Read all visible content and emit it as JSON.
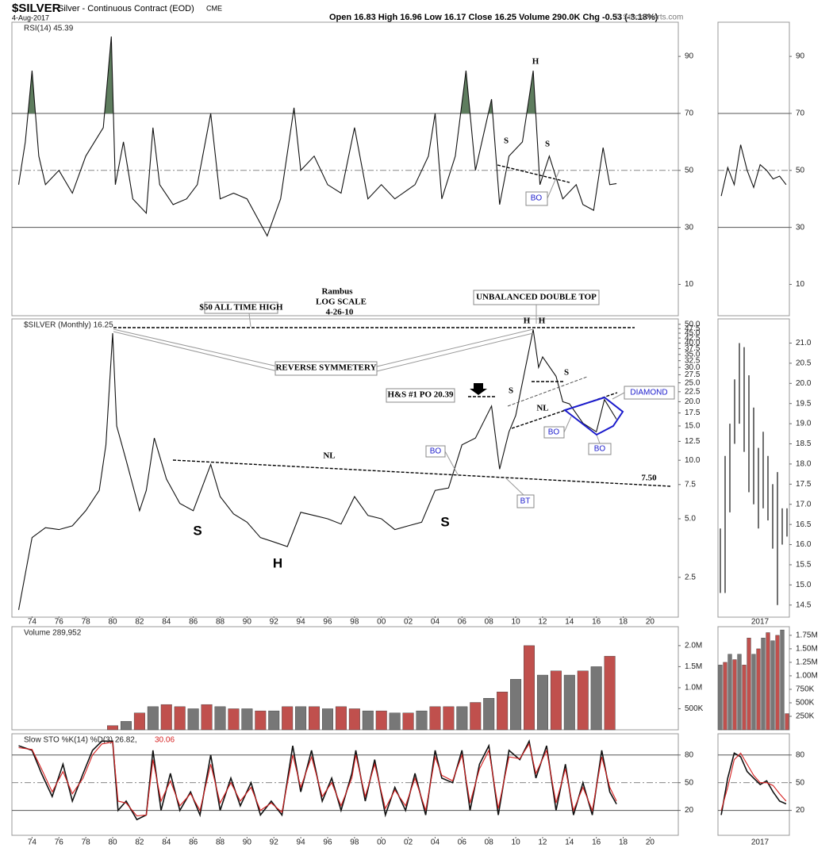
{
  "header": {
    "symbol": "$SILVER",
    "name": "Silver - Continuous Contract (EOD)",
    "exchange": "CME",
    "date": "4-Aug-2017",
    "quote": "Open 16.83 High 16.96 Low 16.17 Close 16.25 Volume 290.0K Chg -0.53 (-3.18%)",
    "copyright": "© StockCharts.com"
  },
  "chart_data": [
    {
      "type": "line",
      "label": "RSI(14) 45.39",
      "color": "#111",
      "fill_color": "#5e7d5e",
      "overbought": 70,
      "x": [
        1973,
        1973.5,
        1974,
        1974.5,
        1975,
        1976,
        1977,
        1978,
        1979.3,
        1979.9,
        1980.2,
        1980.8,
        1981.5,
        1982.5,
        1983,
        1983.5,
        1984.5,
        1985.5,
        1986.3,
        1987.3,
        1988,
        1989,
        1990,
        1991.5,
        1992.5,
        1993.5,
        1994,
        1995,
        1996,
        1997,
        1998,
        1999,
        2000,
        2001,
        2002.5,
        2003.5,
        2004,
        2004.5,
        2005.5,
        2006.3,
        2007,
        2008.2,
        2008.8,
        2009.5,
        2010.5,
        2011.3,
        2011.8,
        2012.5,
        2013.5,
        2014.5,
        2015,
        2015.8,
        2016.5,
        2017,
        2017.5
      ],
      "values": [
        45,
        60,
        85,
        55,
        45,
        50,
        42,
        55,
        65,
        97,
        45,
        60,
        40,
        35,
        65,
        45,
        38,
        40,
        45,
        70,
        40,
        42,
        40,
        27,
        40,
        72,
        50,
        55,
        45,
        42,
        65,
        40,
        45,
        40,
        45,
        55,
        70,
        40,
        55,
        85,
        50,
        75,
        38,
        55,
        60,
        85,
        45,
        55,
        40,
        45,
        38,
        36,
        58,
        45,
        45.39
      ],
      "xlim": [
        1972.5,
        2022.1
      ],
      "ylim": [
        -1,
        102
      ],
      "yticks": [
        10,
        30,
        50,
        70,
        90
      ],
      "grid_styles": [
        "none",
        "solid",
        "dashdot",
        "solid",
        "none"
      ],
      "annotations": [
        "H",
        "S",
        "S",
        "BO"
      ]
    },
    {
      "type": "line",
      "label": "$SILVER (Monthly) 16.25",
      "color": "#111",
      "log": true,
      "x": [
        1973,
        1974,
        1975,
        1976,
        1977,
        1978,
        1979,
        1979.5,
        1980,
        1980.3,
        1981,
        1982,
        1982.5,
        1983.1,
        1984,
        1985,
        1986,
        1987.3,
        1988,
        1989,
        1990,
        1991,
        1992,
        1993,
        1994,
        1995,
        1996,
        1997,
        1998,
        1999,
        2000,
        2001,
        2002,
        2003,
        2004,
        2005,
        2006,
        2007,
        2008.2,
        2008.8,
        2009.5,
        2010,
        2011.3,
        2011.7,
        2012,
        2013,
        2013.5,
        2014,
        2015,
        2016,
        2016.6,
        2017.5
      ],
      "values": [
        1.7,
        4.0,
        4.5,
        4.4,
        4.6,
        5.5,
        7,
        12,
        45,
        15,
        10,
        5.5,
        7,
        13,
        8,
        6,
        5.5,
        9.5,
        6.5,
        5.3,
        4.8,
        4.0,
        3.8,
        3.6,
        5.4,
        5.2,
        5.0,
        4.7,
        6.5,
        5.2,
        5.0,
        4.4,
        4.6,
        4.8,
        7.0,
        7.2,
        12,
        13,
        19,
        9,
        14,
        17,
        47,
        30,
        34,
        27,
        20,
        19.5,
        15.5,
        14,
        20.5,
        16.25
      ],
      "xlim": [
        1972.5,
        2022.1
      ],
      "ylim": [
        1.56,
        53.3
      ],
      "xticks": [
        {
          "value": 1974,
          "label": "74"
        },
        {
          "value": 1976,
          "label": "76"
        },
        {
          "value": 1978,
          "label": "78"
        },
        {
          "value": 1980,
          "label": "80"
        },
        {
          "value": 1982,
          "label": "82"
        },
        {
          "value": 1984,
          "label": "84"
        },
        {
          "value": 1986,
          "label": "86"
        },
        {
          "value": 1988,
          "label": "88"
        },
        {
          "value": 1990,
          "label": "90"
        },
        {
          "value": 1992,
          "label": "92"
        },
        {
          "value": 1994,
          "label": "94"
        },
        {
          "value": 1996,
          "label": "96"
        },
        {
          "value": 1998,
          "label": "98"
        },
        {
          "value": 2000,
          "label": "00"
        },
        {
          "value": 2002,
          "label": "02"
        },
        {
          "value": 2004,
          "label": "04"
        },
        {
          "value": 2006,
          "label": "06"
        },
        {
          "value": 2008,
          "label": "08"
        },
        {
          "value": 2010,
          "label": "10"
        },
        {
          "value": 2012,
          "label": "12"
        },
        {
          "value": 2014,
          "label": "14"
        },
        {
          "value": 2016,
          "label": "16"
        },
        {
          "value": 2018,
          "label": "18"
        },
        {
          "value": 2020,
          "label": "20"
        }
      ],
      "yticks": [
        2.5,
        {
          "value": 5,
          "label": "5.0"
        },
        7.5,
        {
          "value": 10,
          "label": "10.0"
        },
        12.5,
        {
          "value": 15,
          "label": "15.0"
        },
        17.5,
        {
          "value": 20,
          "label": "20.0"
        },
        22.5,
        {
          "value": 25,
          "label": "25.0"
        },
        27.5,
        {
          "value": 30,
          "label": "30.0"
        },
        32.5,
        {
          "value": 35,
          "label": "35.0"
        },
        37.5,
        {
          "value": 40,
          "label": "40.0"
        },
        42.5,
        {
          "value": 45,
          "label": "45.0"
        },
        47.5,
        {
          "value": 50,
          "label": "50.0"
        }
      ],
      "annotations": [
        "Rambus",
        "LOG SCALE",
        "4-26-10",
        "$50 ALL TIME HIGH",
        "UNBALANCED DOUBLE TOP",
        "H",
        "H",
        "REVERSE SYMMETERY",
        "H&S #1 PO 20.39",
        "S",
        "S",
        "NL",
        "DIAMOND",
        "BO",
        "BO",
        "NL",
        "7.50",
        "S",
        "H",
        "S",
        "BO",
        "BT"
      ]
    },
    {
      "type": "bar",
      "label": "Volume 289,952",
      "x": [
        1980,
        1981,
        1982,
        1983,
        1984,
        1985,
        1986,
        1987,
        1988,
        1989,
        1990,
        1991,
        1992,
        1993,
        1994,
        1995,
        1996,
        1997,
        1998,
        1999,
        2000,
        2001,
        2002,
        2003,
        2004,
        2005,
        2006,
        2007,
        2008,
        2009,
        2010,
        2011,
        2012,
        2013,
        2014,
        2015,
        2016,
        2017
      ],
      "values": [
        100000,
        200000,
        400000,
        550000,
        600000,
        550000,
        500000,
        600000,
        550000,
        500000,
        500000,
        450000,
        450000,
        550000,
        550000,
        550000,
        500000,
        550000,
        500000,
        450000,
        450000,
        400000,
        400000,
        450000,
        550000,
        550000,
        550000,
        650000,
        750000,
        900000,
        1200000,
        2000000,
        1300000,
        1400000,
        1300000,
        1400000,
        1500000,
        1750000
      ],
      "colors": [
        "#c0504d",
        "#777",
        "#c0504d",
        "#777",
        "#c0504d",
        "#c0504d",
        "#777",
        "#c0504d",
        "#777",
        "#c0504d",
        "#777",
        "#c0504d",
        "#777",
        "#c0504d",
        "#777",
        "#c0504d",
        "#777",
        "#c0504d",
        "#c0504d",
        "#777",
        "#c0504d",
        "#777",
        "#c0504d",
        "#777",
        "#c0504d",
        "#c0504d",
        "#777",
        "#c0504d",
        "#777",
        "#c0504d",
        "#777",
        "#c0504d",
        "#777",
        "#c0504d",
        "#777",
        "#c0504d",
        "#777",
        "#c0504d"
      ],
      "xlim": [
        1972.5,
        2022.1
      ],
      "ylim": [
        0,
        2450000
      ],
      "yticks": [
        {
          "value": 500000,
          "label": "500K"
        },
        {
          "value": 1000000,
          "label": "1.0M"
        },
        {
          "value": 1500000,
          "label": "1.5M"
        },
        {
          "value": 2000000,
          "label": "2.0M"
        }
      ]
    },
    {
      "type": "line",
      "label": "Slow STO %K(14) %D(3) 26.82,",
      "label_d": "30.06",
      "x": [
        1973,
        1974,
        1974.7,
        1975.5,
        1976.3,
        1977,
        1977.8,
        1978.5,
        1979.2,
        1980,
        1980.4,
        1981,
        1981.8,
        1982.5,
        1983,
        1983.6,
        1984.3,
        1985,
        1985.8,
        1986.5,
        1987.3,
        1988,
        1988.8,
        1989.5,
        1990.3,
        1991,
        1991.8,
        1992.6,
        1993.4,
        1994,
        1994.8,
        1995.6,
        1996.3,
        1997,
        1997.8,
        1998.1,
        1998.8,
        1999.5,
        2000.3,
        2001,
        2001.8,
        2002.5,
        2003.3,
        2004,
        2004.5,
        2005.3,
        2006,
        2006.6,
        2007.3,
        2008,
        2008.7,
        2009.5,
        2010.3,
        2011,
        2011.5,
        2012.3,
        2013,
        2013.7,
        2014.3,
        2015,
        2015.7,
        2016.4,
        2017,
        2017.5
      ],
      "series": [
        {
          "color": "#111",
          "values": [
            90,
            85,
            60,
            35,
            70,
            30,
            60,
            85,
            95,
            95,
            20,
            30,
            10,
            15,
            85,
            20,
            60,
            20,
            40,
            15,
            80,
            20,
            55,
            25,
            50,
            15,
            30,
            15,
            90,
            40,
            85,
            30,
            55,
            20,
            60,
            85,
            30,
            75,
            15,
            45,
            20,
            60,
            15,
            85,
            55,
            50,
            85,
            20,
            70,
            90,
            15,
            85,
            75,
            95,
            55,
            90,
            20,
            70,
            15,
            50,
            15,
            85,
            40,
            26.82
          ]
        },
        {
          "color": "#d62020",
          "values": [
            88,
            86,
            65,
            40,
            62,
            38,
            55,
            80,
            92,
            94,
            30,
            28,
            14,
            15,
            75,
            30,
            52,
            25,
            38,
            20,
            70,
            28,
            50,
            30,
            45,
            20,
            28,
            18,
            80,
            45,
            78,
            35,
            50,
            25,
            55,
            80,
            35,
            70,
            22,
            42,
            25,
            55,
            20,
            78,
            58,
            52,
            80,
            28,
            65,
            85,
            22,
            78,
            76,
            92,
            60,
            85,
            28,
            65,
            20,
            45,
            20,
            78,
            45,
            30.06
          ]
        }
      ],
      "xlim": [
        1972.5,
        2022.1
      ],
      "ylim": [
        -7,
        103
      ],
      "yticks": [
        20,
        50,
        80
      ],
      "grid_styles": [
        "solid",
        "dashdot",
        "solid"
      ]
    },
    {
      "type": "line",
      "color": "#111",
      "values": [
        41,
        51,
        45,
        59,
        50,
        44,
        52,
        50,
        47,
        48,
        45
      ],
      "ylim": [
        -1,
        102
      ],
      "yticks": [
        10,
        30,
        50,
        70,
        90
      ],
      "grid_styles": [
        "none",
        "solid",
        "dashdot",
        "solid",
        "none"
      ]
    },
    {
      "type": "ohlc",
      "color": "#111",
      "x_label": "2017",
      "bars": [
        {
          "high": 16.4,
          "low": 14.8
        },
        {
          "high": 18.2,
          "low": 14.8
        },
        {
          "high": 19.0,
          "low": 16.8
        },
        {
          "high": 20.1,
          "low": 18.5
        },
        {
          "high": 21.0,
          "low": 19.0
        },
        {
          "high": 20.9,
          "low": 18.3
        },
        {
          "high": 20.2,
          "low": 17.3
        },
        {
          "high": 19.4,
          "low": 17.0
        },
        {
          "high": 18.4,
          "low": 16.4
        },
        {
          "high": 18.8,
          "low": 16.9
        },
        {
          "high": 18.2,
          "low": 16.6
        },
        {
          "high": 17.5,
          "low": 15.9
        },
        {
          "high": 17.8,
          "low": 14.5
        },
        {
          "high": 16.9,
          "low": 16.0
        },
        {
          "high": 16.9,
          "low": 16.2
        }
      ],
      "ylim": [
        14.2,
        21.6
      ],
      "yticks": [
        14.5,
        {
          "value": 15,
          "label": "15.0"
        },
        15.5,
        {
          "value": 16,
          "label": "16.0"
        },
        16.5,
        {
          "value": 17,
          "label": "17.0"
        },
        17.5,
        {
          "value": 18,
          "label": "18.0"
        },
        18.5,
        {
          "value": 19,
          "label": "19.0"
        },
        19.5,
        {
          "value": 20,
          "label": "20.0"
        },
        20.5,
        {
          "value": 21,
          "label": "21.0"
        }
      ]
    },
    {
      "type": "bar",
      "values": [
        1200000,
        1250000,
        1400000,
        1300000,
        1400000,
        1200000,
        1700000,
        1400000,
        1500000,
        1700000,
        1800000,
        1650000,
        1750000,
        1850000,
        300000
      ],
      "colors": [
        "#777",
        "#c0504d",
        "#777",
        "#c0504d",
        "#777",
        "#c0504d",
        "#c0504d",
        "#777",
        "#c0504d",
        "#777",
        "#c0504d",
        "#777",
        "#c0504d",
        "#777",
        "#c0504d"
      ],
      "ylim": [
        0,
        1910000
      ],
      "yticks": [
        {
          "value": 250000,
          "label": "250K"
        },
        {
          "value": 500000,
          "label": "500K"
        },
        {
          "value": 750000,
          "label": "750K"
        },
        {
          "value": 1000000,
          "label": "1.00M"
        },
        {
          "value": 1250000,
          "label": "1.25M"
        },
        {
          "value": 1500000,
          "label": "1.50M"
        },
        {
          "value": 1750000,
          "label": "1.75M"
        }
      ]
    },
    {
      "type": "line",
      "series": [
        {
          "color": "#111",
          "values": [
            15,
            55,
            82,
            78,
            62,
            55,
            48,
            52,
            40,
            30,
            27
          ]
        },
        {
          "color": "#d62020",
          "values": [
            20,
            45,
            75,
            82,
            70,
            58,
            50,
            50,
            47,
            38,
            30
          ]
        }
      ],
      "ylim": [
        -7,
        103
      ],
      "yticks": [
        20,
        50,
        80
      ],
      "grid_styles": [
        "solid",
        "dashdot",
        "solid"
      ]
    }
  ]
}
